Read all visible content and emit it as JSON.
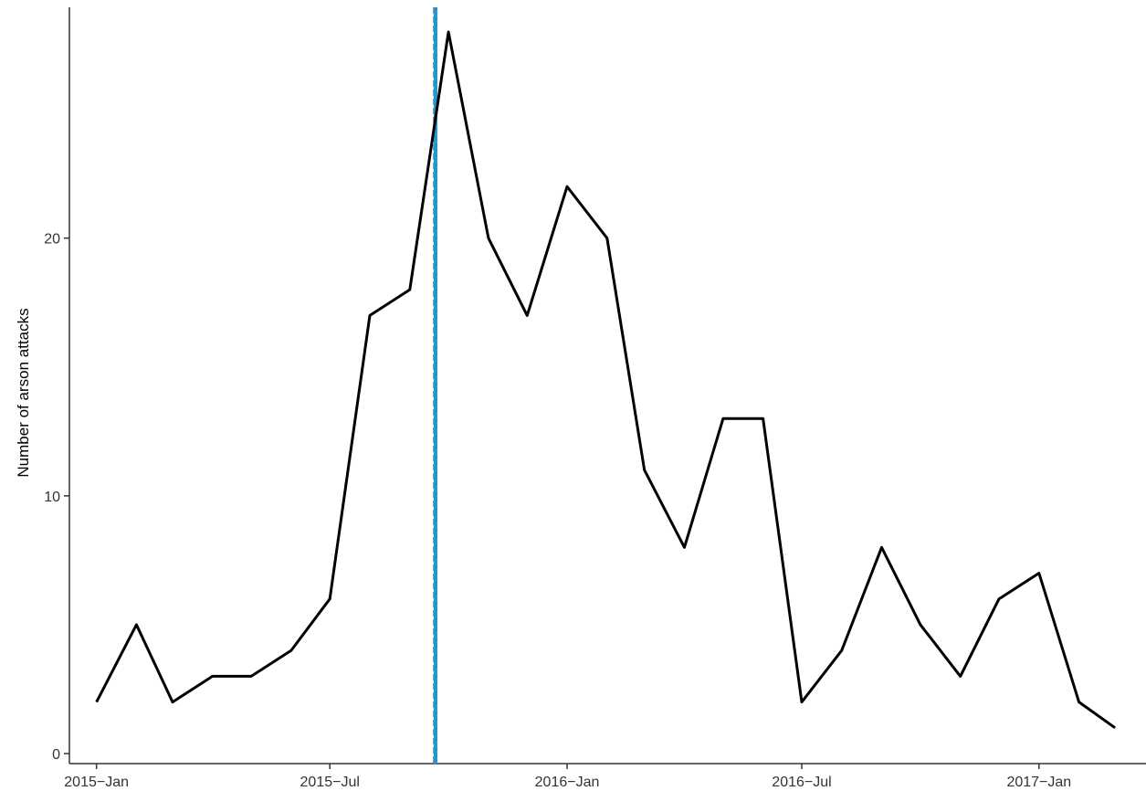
{
  "chart_data": {
    "type": "line",
    "title": "",
    "xlabel": "",
    "ylabel": "Number of arson attacks",
    "x": [
      "2015-01",
      "2015-02",
      "2015-03",
      "2015-04",
      "2015-05",
      "2015-06",
      "2015-07",
      "2015-08",
      "2015-09",
      "2015-10",
      "2015-11",
      "2015-12",
      "2016-01",
      "2016-02",
      "2016-03",
      "2016-04",
      "2016-05",
      "2016-06",
      "2016-07",
      "2016-08",
      "2016-09",
      "2016-10",
      "2016-11",
      "2016-12",
      "2017-01",
      "2017-02",
      "2017-03"
    ],
    "series": [
      {
        "values": [
          2,
          5,
          2,
          3,
          3,
          4,
          6,
          17,
          18,
          28,
          20,
          17,
          22,
          20,
          11,
          8,
          13,
          13,
          2,
          4,
          8,
          5,
          3,
          6,
          7,
          2,
          1
        ],
        "color": "#000000"
      }
    ],
    "x_ticks": [
      {
        "date": "2015-01",
        "label": "2015−Jan"
      },
      {
        "date": "2015-07",
        "label": "2015−Jul"
      },
      {
        "date": "2016-01",
        "label": "2016−Jan"
      },
      {
        "date": "2016-07",
        "label": "2016−Jul"
      },
      {
        "date": "2017-01",
        "label": "2017−Jan"
      }
    ],
    "y_ticks": [
      0,
      10,
      20
    ],
    "ylim": [
      0,
      29
    ],
    "xlim": [
      "2014-12-11",
      "2017-03-25"
    ],
    "grid": false,
    "vlines": [
      {
        "date": "2015-09-20",
        "style": "dashed",
        "color": "#000000"
      },
      {
        "date": "2015-09-21",
        "style": "solid",
        "color": "#1a9bd7"
      }
    ]
  }
}
